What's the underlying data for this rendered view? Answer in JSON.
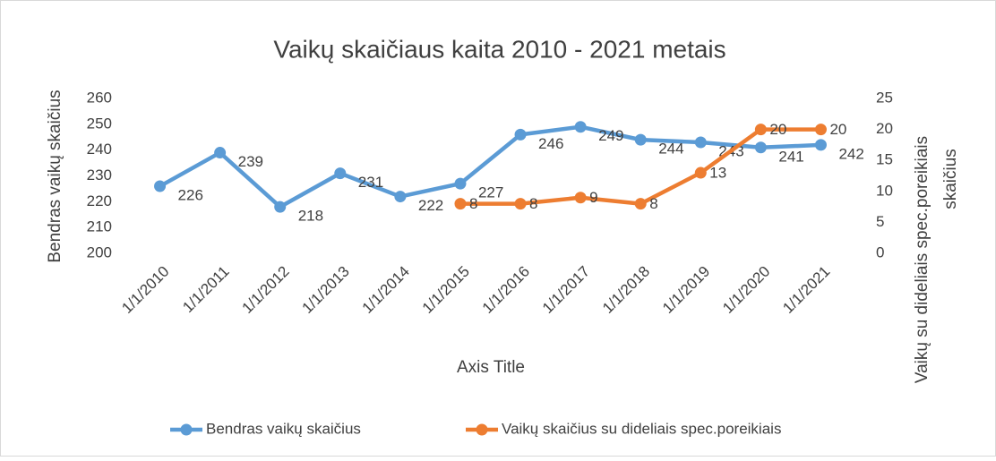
{
  "chart_data": {
    "type": "line",
    "title": "Vaikų skaičiaus kaita 2010 - 2021 metais",
    "x_label": "Axis Title",
    "y_label": "Bendras vaikų skaičius",
    "y2_label": [
      "Vaikų su dideliais spec.poreikiais",
      "skaičius"
    ],
    "categories": [
      "1/1/2010",
      "1/1/2011",
      "1/1/2012",
      "1/1/2013",
      "1/1/2014",
      "1/1/2015",
      "1/1/2016",
      "1/1/2017",
      "1/1/2018",
      "1/1/2019",
      "1/1/2020",
      "1/1/2021"
    ],
    "series": [
      {
        "name": "Bendras vaikų skaičius",
        "color": "#5b9bd5",
        "values": [
          226,
          239,
          218,
          231,
          222,
          227,
          246,
          249,
          244,
          243,
          241,
          242
        ]
      },
      {
        "name": "Vaikų skaičius su dideliais spec.poreikiais",
        "color": "#ed7d31",
        "axis": "y2",
        "values": [
          null,
          null,
          null,
          null,
          null,
          8,
          8,
          9,
          8,
          13,
          20,
          20
        ]
      }
    ],
    "ylim": [
      200,
      260
    ],
    "yticks": [
      200,
      210,
      220,
      230,
      240,
      250,
      260
    ],
    "y2lim": [
      0,
      25
    ],
    "y2ticks": [
      0,
      5,
      10,
      15,
      20,
      25
    ],
    "grid": false,
    "legend": "bottom"
  }
}
